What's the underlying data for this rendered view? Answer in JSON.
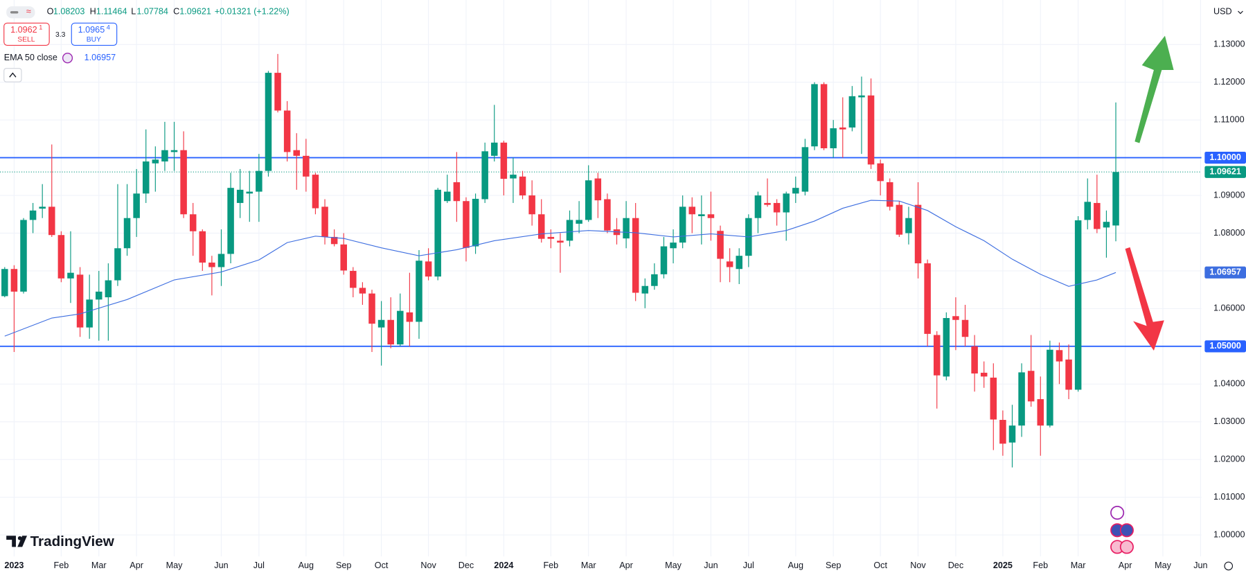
{
  "header": {
    "ohlc": [
      {
        "key": "O",
        "value": "1.08203"
      },
      {
        "key": "H",
        "value": "1.11464"
      },
      {
        "key": "L",
        "value": "1.07784"
      },
      {
        "key": "C",
        "value": "1.09621"
      }
    ],
    "change": "+0.01321 (+1.22%)",
    "sell": {
      "price": "1.0962",
      "pip": "1",
      "label": "SELL"
    },
    "spread": "3.3",
    "buy": {
      "price": "1.0965",
      "pip": "4",
      "label": "BUY"
    },
    "indicator": {
      "name": "EMA 50 close",
      "value": "1.06957"
    },
    "currency": "USD",
    "logo": "TradingView"
  },
  "chart_data": {
    "type": "candlestick",
    "up_color": "#089981",
    "down_color": "#f23645",
    "open": [
      1.0633,
      1.0705,
      1.0645,
      1.0835,
      1.0865,
      1.087,
      1.0795,
      1.068,
      1.069,
      1.055,
      1.0624,
      1.063,
      1.0675,
      1.076,
      1.084,
      1.0905,
      1.0985,
      1.099,
      1.1015,
      1.102,
      1.085,
      1.0805,
      1.0722,
      1.071,
      1.0745,
      1.088,
      1.0905,
      1.091,
      1.0965,
      1.1225,
      1.1125,
      1.102,
      1.1005,
      1.0955,
      1.087,
      1.079,
      1.077,
      1.07,
      1.0655,
      1.064,
      1.055,
      1.057,
      1.0505,
      1.059,
      1.0565,
      1.0725,
      1.0685,
      1.0885,
      1.0935,
      1.0885,
      1.0765,
      1.089,
      1.1005,
      1.104,
      1.0945,
      1.095,
      1.09,
      1.085,
      1.079,
      1.078,
      1.078,
      1.0825,
      1.0835,
      1.0945,
      1.089,
      1.081,
      1.0786,
      1.084,
      1.064,
      1.066,
      1.0691,
      1.076,
      1.0775,
      1.087,
      1.0845,
      1.085,
      1.0806,
      1.0725,
      1.0705,
      1.074,
      1.084,
      1.088,
      1.088,
      1.0855,
      1.0905,
      1.091,
      1.103,
      1.1195,
      1.1025,
      1.108,
      1.108,
      1.116,
      1.1165,
      1.0985,
      1.0935,
      1.0875,
      1.08,
      1.0875,
      1.072,
      1.053,
      1.042,
      1.058,
      1.057,
      1.05,
      1.043,
      1.0417,
      1.0305,
      1.0245,
      1.029,
      1.0435,
      1.036,
      1.029,
      1.049,
      1.0465,
      1.0385,
      1.0835,
      1.088,
      1.0815,
      1.08203
    ],
    "high": [
      1.071,
      1.0715,
      1.084,
      1.088,
      1.093,
      1.1035,
      1.0805,
      1.0805,
      1.071,
      1.069,
      1.07,
      1.072,
      1.093,
      1.093,
      1.097,
      1.1075,
      1.103,
      1.1095,
      1.1095,
      1.107,
      1.088,
      1.081,
      1.074,
      1.081,
      1.096,
      1.097,
      1.0965,
      1.101,
      1.123,
      1.1275,
      1.115,
      1.1065,
      1.105,
      1.096,
      1.089,
      1.081,
      1.08,
      1.071,
      1.067,
      1.065,
      1.062,
      1.063,
      1.064,
      1.0695,
      1.0755,
      1.076,
      1.092,
      1.0955,
      1.1015,
      1.0895,
      1.0905,
      1.104,
      1.114,
      1.1045,
      1.1,
      1.0965,
      1.094,
      1.089,
      1.081,
      1.08,
      1.086,
      1.0885,
      1.098,
      1.096,
      1.0905,
      1.084,
      1.0885,
      1.088,
      1.068,
      1.072,
      1.079,
      1.081,
      1.09,
      1.0895,
      1.09,
      1.091,
      1.082,
      1.076,
      1.076,
      1.085,
      1.091,
      1.0945,
      1.089,
      1.091,
      1.095,
      1.105,
      1.12,
      1.12,
      1.11,
      1.116,
      1.119,
      1.1215,
      1.121,
      1.0995,
      1.0945,
      1.0885,
      1.087,
      1.0935,
      1.073,
      1.054,
      1.059,
      1.063,
      1.061,
      1.053,
      1.046,
      1.0455,
      1.033,
      1.0345,
      1.0455,
      1.053,
      1.042,
      1.0515,
      1.051,
      1.0505,
      1.0845,
      1.0945,
      1.0955,
      1.086,
      1.11464
    ],
    "low": [
      1.063,
      1.0485,
      1.064,
      1.08,
      1.084,
      1.079,
      1.067,
      1.0615,
      1.0525,
      1.052,
      1.0515,
      1.0515,
      1.066,
      1.074,
      1.079,
      1.088,
      1.091,
      1.0965,
      1.0965,
      1.084,
      1.074,
      1.07,
      1.0635,
      1.066,
      1.072,
      1.084,
      1.083,
      1.083,
      1.095,
      1.112,
      1.099,
      1.0915,
      1.091,
      1.085,
      1.077,
      1.0765,
      1.069,
      1.063,
      1.061,
      1.0485,
      1.0449,
      1.0495,
      1.05,
      1.05,
      1.052,
      1.0675,
      1.0675,
      1.088,
      1.083,
      1.0725,
      1.0745,
      1.088,
      1.099,
      1.09,
      1.088,
      1.089,
      1.082,
      1.0775,
      1.076,
      1.0695,
      1.0765,
      1.08,
      1.083,
      1.084,
      1.08,
      1.077,
      1.076,
      1.062,
      1.0601,
      1.065,
      1.068,
      1.072,
      1.076,
      1.08,
      1.077,
      1.078,
      1.067,
      1.067,
      1.0665,
      1.071,
      1.08,
      1.087,
      1.082,
      1.078,
      1.088,
      1.09,
      1.102,
      1.102,
      1.1,
      1.1,
      1.107,
      1.101,
      1.097,
      1.09,
      1.086,
      1.079,
      1.077,
      1.068,
      1.05,
      1.0335,
      1.041,
      1.049,
      1.05,
      1.038,
      1.039,
      1.0225,
      1.021,
      1.0179,
      1.026,
      1.034,
      1.021,
      1.0285,
      1.04,
      1.036,
      1.038,
      1.081,
      1.08,
      1.0735,
      1.07784
    ],
    "close": [
      1.0705,
      1.0645,
      1.0835,
      1.086,
      1.087,
      1.0795,
      1.068,
      1.0695,
      1.055,
      1.0624,
      1.0645,
      1.0675,
      1.076,
      1.084,
      1.0905,
      1.099,
      1.0995,
      1.102,
      1.102,
      1.085,
      1.0805,
      1.0722,
      1.071,
      1.0745,
      1.092,
      1.0915,
      1.091,
      1.0965,
      1.1225,
      1.1125,
      1.1015,
      1.1005,
      1.095,
      1.0866,
      1.079,
      1.0771,
      1.0701,
      1.0655,
      1.064,
      1.056,
      1.057,
      1.0505,
      1.0594,
      1.0565,
      1.0727,
      1.0685,
      1.0915,
      1.091,
      1.0885,
      1.0761,
      1.0891,
      1.1017,
      1.104,
      1.0944,
      1.0955,
      1.09,
      1.085,
      1.0785,
      1.0785,
      1.0775,
      1.0835,
      1.0835,
      1.094,
      1.0887,
      1.0807,
      1.0795,
      1.084,
      1.0642,
      1.066,
      1.0691,
      1.0765,
      1.0775,
      1.087,
      1.085,
      1.085,
      1.084,
      1.0732,
      1.071,
      1.074,
      1.084,
      1.09,
      1.0875,
      1.0855,
      1.0905,
      1.092,
      1.1028,
      1.1195,
      1.1025,
      1.1078,
      1.1075,
      1.1163,
      1.1165,
      1.0982,
      1.0938,
      1.087,
      1.0796,
      1.084,
      1.072,
      1.0533,
      1.0423,
      1.0575,
      1.057,
      1.0525,
      1.0428,
      1.042,
      1.0306,
      1.0242,
      1.029,
      1.0431,
      1.0354,
      1.029,
      1.0491,
      1.046,
      1.0385,
      1.0834,
      1.0883,
      1.0811,
      1.083,
      1.09621
    ],
    "ema": {
      "name": "EMA 50 close",
      "color": "#3d6ee0",
      "x": [
        0,
        5,
        8,
        13,
        18,
        23,
        27,
        30,
        33,
        36,
        40,
        44,
        48,
        52,
        57,
        62,
        67,
        71,
        75,
        79,
        83,
        86,
        89,
        92,
        95,
        98,
        101,
        104,
        107,
        110,
        113,
        116,
        118
      ],
      "values": [
        1.0527,
        1.0575,
        1.0586,
        1.0624,
        1.0676,
        1.0697,
        1.0729,
        1.0775,
        1.0792,
        1.0786,
        1.0761,
        1.074,
        1.0756,
        1.078,
        1.0798,
        1.0807,
        1.0801,
        1.079,
        1.0798,
        1.079,
        1.0807,
        1.0832,
        1.0866,
        1.0887,
        1.0885,
        1.086,
        1.0817,
        1.078,
        1.0731,
        1.0691,
        1.0659,
        1.0676,
        1.06957
      ],
      "last_label": "1.06957"
    },
    "last_price": {
      "value": 1.09621,
      "label": "1.09621",
      "color": "#089981"
    },
    "hlines": [
      {
        "value": 1.1,
        "label": "1.10000",
        "color": "#2962ff"
      },
      {
        "value": 1.05,
        "label": "1.05000",
        "color": "#2962ff"
      }
    ],
    "xlim": [
      -0.5,
      127.1
    ],
    "xticks": [
      {
        "value": 1,
        "label": "2023"
      },
      {
        "value": 6,
        "label": "Feb"
      },
      {
        "value": 10,
        "label": "Mar"
      },
      {
        "value": 14,
        "label": "Apr"
      },
      {
        "value": 18,
        "label": "May"
      },
      {
        "value": 23,
        "label": "Jun"
      },
      {
        "value": 27,
        "label": "Jul"
      },
      {
        "value": 32,
        "label": "Aug"
      },
      {
        "value": 36,
        "label": "Sep"
      },
      {
        "value": 40,
        "label": "Oct"
      },
      {
        "value": 45,
        "label": "Nov"
      },
      {
        "value": 49,
        "label": "Dec"
      },
      {
        "value": 53,
        "label": "2024"
      },
      {
        "value": 58,
        "label": "Feb"
      },
      {
        "value": 62,
        "label": "Mar"
      },
      {
        "value": 66,
        "label": "Apr"
      },
      {
        "value": 71,
        "label": "May"
      },
      {
        "value": 75,
        "label": "Jun"
      },
      {
        "value": 79,
        "label": "Jul"
      },
      {
        "value": 84,
        "label": "Aug"
      },
      {
        "value": 88,
        "label": "Sep"
      },
      {
        "value": 93,
        "label": "Oct"
      },
      {
        "value": 97,
        "label": "Nov"
      },
      {
        "value": 101,
        "label": "Dec"
      },
      {
        "value": 106,
        "label": "2025"
      },
      {
        "value": 110,
        "label": "Feb"
      },
      {
        "value": 114,
        "label": "Mar"
      },
      {
        "value": 119,
        "label": "Apr"
      },
      {
        "value": 123,
        "label": "May"
      },
      {
        "value": 127,
        "label": "Jun"
      }
    ],
    "ylim": [
      0.9943,
      1.1418
    ],
    "yticks": [
      {
        "value": 1.13,
        "label": "1.13000"
      },
      {
        "value": 1.12,
        "label": "1.12000"
      },
      {
        "value": 1.11,
        "label": "1.11000"
      },
      {
        "value": 1.1,
        "label": "1.10000"
      },
      {
        "value": 1.09,
        "label": "1.09000"
      },
      {
        "value": 1.08,
        "label": "1.08000"
      },
      {
        "value": 1.07,
        "label": "1.07000"
      },
      {
        "value": 1.06,
        "label": "1.06000"
      },
      {
        "value": 1.05,
        "label": "1.05000"
      },
      {
        "value": 1.04,
        "label": "1.04000"
      },
      {
        "value": 1.03,
        "label": "1.03000"
      },
      {
        "value": 1.02,
        "label": "1.02000"
      },
      {
        "value": 1.01,
        "label": "1.01000"
      },
      {
        "value": 1,
        "label": "1.00000"
      }
    ],
    "grid": true
  }
}
